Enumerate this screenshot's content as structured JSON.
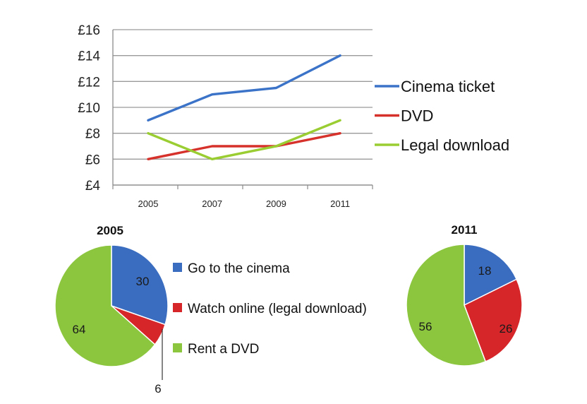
{
  "chart_data": [
    {
      "type": "line",
      "title": "",
      "xlabel": "",
      "ylabel": "",
      "x": [
        "2005",
        "2007",
        "2009",
        "2011"
      ],
      "ylim": [
        4,
        16
      ],
      "y_ticks": [
        "£4",
        "£6",
        "£8",
        "£10",
        "£12",
        "£14",
        "£16"
      ],
      "grid": true,
      "legend_position": "right",
      "series": [
        {
          "name": "Cinema ticket",
          "values": [
            9,
            11,
            11.5,
            14
          ],
          "color": "#3b73c8"
        },
        {
          "name": "DVD",
          "values": [
            6,
            7,
            7,
            8
          ],
          "color": "#d6322b"
        },
        {
          "name": "Legal download",
          "values": [
            8,
            6,
            7,
            9
          ],
          "color": "#9acd32"
        }
      ]
    },
    {
      "type": "pie",
      "title": "2005",
      "categories": [
        "Go to the cinema",
        "Watch online (legal download)",
        "Rent a DVD"
      ],
      "values": [
        30,
        6,
        64
      ],
      "colors": [
        "#3a6dc0",
        "#d6262a",
        "#8cc63f"
      ],
      "legend_position": "right"
    },
    {
      "type": "pie",
      "title": "2011",
      "categories": [
        "Go to the cinema",
        "Watch online (legal download)",
        "Rent a DVD"
      ],
      "values": [
        18,
        26,
        56
      ],
      "colors": [
        "#3a6dc0",
        "#d6262a",
        "#8cc63f"
      ]
    }
  ]
}
